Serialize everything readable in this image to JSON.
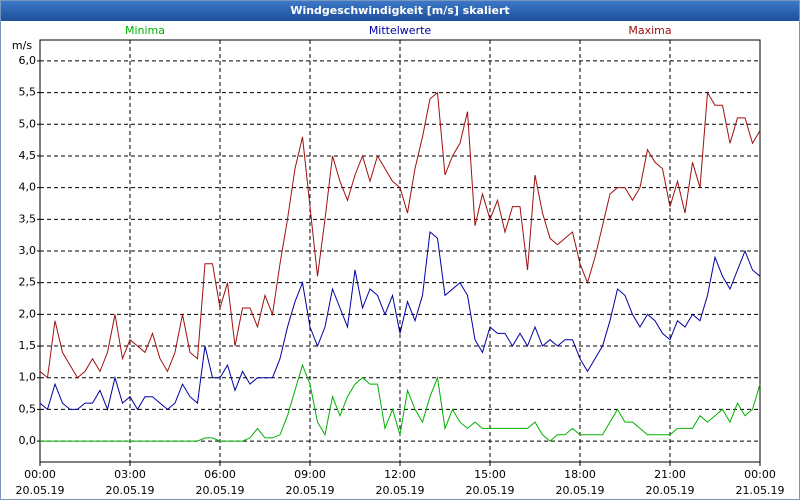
{
  "chart_data": {
    "type": "line",
    "title": "Windgeschwindigkeit [m/s] skaliert",
    "ylabel": "m/s",
    "xlim": [
      0,
      24
    ],
    "xticks": [
      {
        "value": 0,
        "label": [
          "00:00",
          "20.05.19"
        ]
      },
      {
        "value": 3,
        "label": [
          "03:00",
          "20.05.19"
        ]
      },
      {
        "value": 6,
        "label": [
          "06:00",
          "20.05.19"
        ]
      },
      {
        "value": 9,
        "label": [
          "09:00",
          "20.05.19"
        ]
      },
      {
        "value": 12,
        "label": [
          "12:00",
          "20.05.19"
        ]
      },
      {
        "value": 15,
        "label": [
          "15:00",
          "20.05.19"
        ]
      },
      {
        "value": 18,
        "label": [
          "18:00",
          "20.05.19"
        ]
      },
      {
        "value": 21,
        "label": [
          "21:00",
          "20.05.19"
        ]
      },
      {
        "value": 24,
        "label": [
          "00:00",
          "21.05.19"
        ]
      }
    ],
    "ylim": [
      -0.33,
      6.33
    ],
    "yticks": [
      {
        "value": 0,
        "label": "0,0"
      },
      {
        "value": 0.5,
        "label": "0,5"
      },
      {
        "value": 1,
        "label": "1,0"
      },
      {
        "value": 1.5,
        "label": "1,5"
      },
      {
        "value": 2,
        "label": "2,0"
      },
      {
        "value": 2.5,
        "label": "2,5"
      },
      {
        "value": 3,
        "label": "3,0"
      },
      {
        "value": 3.5,
        "label": "3,5"
      },
      {
        "value": 4,
        "label": "4,0"
      },
      {
        "value": 4.5,
        "label": "4,5"
      },
      {
        "value": 5,
        "label": "5,0"
      },
      {
        "value": 5.5,
        "label": "5,5"
      },
      {
        "value": 6,
        "label": "6,0"
      }
    ],
    "grid": true,
    "x": [
      0,
      0.25,
      0.5,
      0.75,
      1,
      1.25,
      1.5,
      1.75,
      2,
      2.25,
      2.5,
      2.75,
      3,
      3.25,
      3.5,
      3.75,
      4,
      4.25,
      4.5,
      4.75,
      5,
      5.25,
      5.5,
      5.75,
      6,
      6.25,
      6.5,
      6.75,
      7,
      7.25,
      7.5,
      7.75,
      8,
      8.25,
      8.5,
      8.75,
      9,
      9.25,
      9.5,
      9.75,
      10,
      10.25,
      10.5,
      10.75,
      11,
      11.25,
      11.5,
      11.75,
      12,
      12.25,
      12.5,
      12.75,
      13,
      13.25,
      13.5,
      13.75,
      14,
      14.25,
      14.5,
      14.75,
      15,
      15.25,
      15.5,
      15.75,
      16,
      16.25,
      16.5,
      16.75,
      17,
      17.25,
      17.5,
      17.75,
      18,
      18.25,
      18.5,
      18.75,
      19,
      19.25,
      19.5,
      19.75,
      20,
      20.25,
      20.5,
      20.75,
      21,
      21.25,
      21.5,
      21.75,
      22,
      22.25,
      22.5,
      22.75,
      23,
      23.25,
      23.5,
      23.75,
      24
    ],
    "series": [
      {
        "name": "Minima",
        "color": "#00b000",
        "values": [
          0,
          0,
          0,
          0,
          0,
          0,
          0,
          0,
          0,
          0,
          0,
          0,
          0,
          0,
          0,
          0,
          0,
          0,
          0,
          0,
          0,
          0,
          0.05,
          0.05,
          0,
          0,
          0,
          0,
          0.05,
          0.2,
          0.05,
          0.05,
          0.1,
          0.4,
          0.8,
          1.2,
          0.9,
          0.3,
          0.1,
          0.7,
          0.4,
          0.7,
          0.9,
          1.0,
          0.9,
          0.9,
          0.2,
          0.5,
          0.1,
          0.8,
          0.5,
          0.3,
          0.7,
          1.0,
          0.2,
          0.5,
          0.3,
          0.2,
          0.3,
          0.2,
          0.2,
          0.2,
          0.2,
          0.2,
          0.2,
          0.2,
          0.3,
          0.1,
          0,
          0.1,
          0.1,
          0.2,
          0.1,
          0.1,
          0.1,
          0.1,
          0.3,
          0.5,
          0.3,
          0.3,
          0.2,
          0.1,
          0.1,
          0.1,
          0.1,
          0.2,
          0.2,
          0.2,
          0.4,
          0.3,
          0.4,
          0.5,
          0.3,
          0.6,
          0.4,
          0.5,
          0.9
        ]
      },
      {
        "name": "Mittelwerte",
        "color": "#0000a0",
        "values": [
          0.6,
          0.5,
          0.9,
          0.6,
          0.5,
          0.5,
          0.6,
          0.6,
          0.8,
          0.5,
          1.0,
          0.6,
          0.7,
          0.5,
          0.7,
          0.7,
          0.6,
          0.5,
          0.6,
          0.9,
          0.7,
          0.6,
          1.5,
          1.0,
          1.0,
          1.2,
          0.8,
          1.1,
          0.9,
          1.0,
          1.0,
          1.0,
          1.3,
          1.8,
          2.2,
          2.5,
          1.8,
          1.5,
          1.8,
          2.4,
          2.1,
          1.8,
          2.7,
          2.1,
          2.4,
          2.3,
          2.0,
          2.3,
          1.7,
          2.2,
          1.9,
          2.3,
          3.3,
          3.2,
          2.3,
          2.4,
          2.5,
          2.3,
          1.6,
          1.4,
          1.8,
          1.7,
          1.7,
          1.5,
          1.7,
          1.5,
          1.8,
          1.5,
          1.6,
          1.5,
          1.6,
          1.6,
          1.3,
          1.1,
          1.3,
          1.5,
          1.9,
          2.4,
          2.3,
          2.0,
          1.8,
          2.0,
          1.9,
          1.7,
          1.6,
          1.9,
          1.8,
          2.0,
          1.9,
          2.3,
          2.9,
          2.6,
          2.4,
          2.7,
          3.0,
          2.7,
          2.6
        ]
      },
      {
        "name": "Maxima",
        "color": "#a01010",
        "values": [
          1.1,
          1.0,
          1.9,
          1.4,
          1.2,
          1.0,
          1.1,
          1.3,
          1.1,
          1.4,
          2.0,
          1.3,
          1.6,
          1.5,
          1.4,
          1.7,
          1.3,
          1.1,
          1.4,
          2.0,
          1.4,
          1.3,
          2.8,
          2.8,
          2.1,
          2.5,
          1.5,
          2.1,
          2.1,
          1.8,
          2.3,
          2.0,
          2.8,
          3.5,
          4.3,
          4.8,
          3.7,
          2.6,
          3.5,
          4.5,
          4.1,
          3.8,
          4.2,
          4.5,
          4.1,
          4.5,
          4.3,
          4.1,
          4.0,
          3.6,
          4.3,
          4.8,
          5.4,
          5.5,
          4.2,
          4.5,
          4.7,
          5.2,
          3.4,
          3.9,
          3.5,
          3.8,
          3.3,
          3.7,
          3.7,
          2.7,
          4.2,
          3.6,
          3.2,
          3.1,
          3.2,
          3.3,
          2.8,
          2.5,
          2.9,
          3.4,
          3.9,
          4.0,
          4.0,
          3.8,
          4.0,
          4.6,
          4.4,
          4.3,
          3.7,
          4.1,
          3.6,
          4.4,
          4.0,
          5.5,
          5.3,
          5.3,
          4.7,
          5.1,
          5.1,
          4.7,
          4.9
        ]
      }
    ]
  }
}
